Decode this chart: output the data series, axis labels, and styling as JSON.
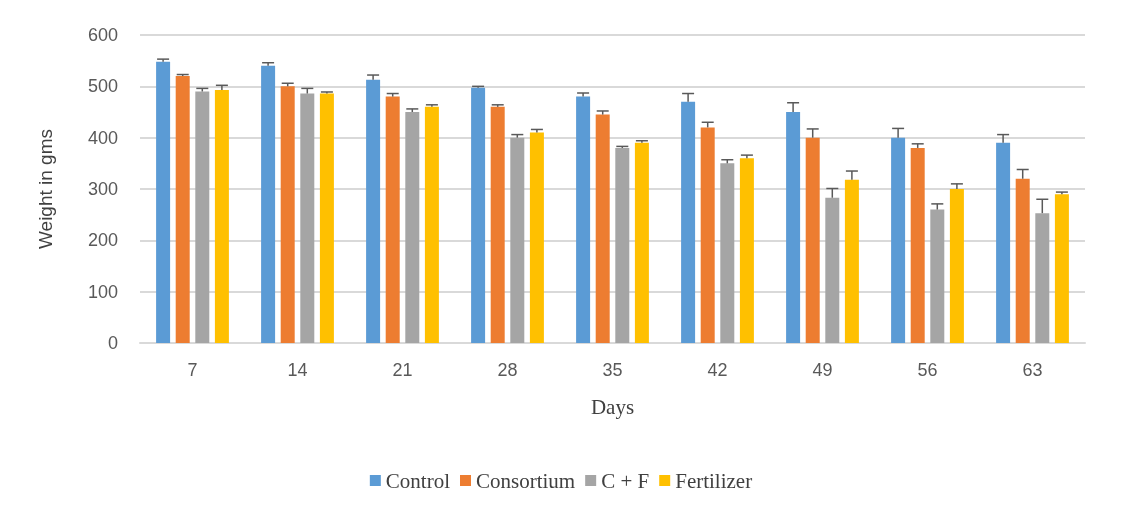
{
  "chart_data": {
    "type": "bar",
    "xlabel": "Days",
    "ylabel": "Weight in gms",
    "categories": [
      "7",
      "14",
      "21",
      "28",
      "35",
      "42",
      "49",
      "56",
      "63"
    ],
    "series": [
      {
        "name": "Control",
        "color": "#5b9bd5",
        "values": [
          548,
          540,
          513,
          497,
          480,
          470,
          450,
          400,
          390
        ],
        "errors": [
          [
            548,
            553
          ],
          [
            540,
            546
          ],
          [
            513,
            522
          ],
          [
            497,
            500
          ],
          [
            480,
            487
          ],
          [
            470,
            486
          ],
          [
            450,
            468
          ],
          [
            400,
            418
          ],
          [
            390,
            406
          ]
        ]
      },
      {
        "name": "Consortium",
        "color": "#ed7d31",
        "values": [
          520,
          500,
          480,
          460,
          445,
          420,
          400,
          380,
          320
        ],
        "errors": [
          [
            520,
            523
          ],
          [
            500,
            506
          ],
          [
            480,
            486
          ],
          [
            460,
            464
          ],
          [
            445,
            452
          ],
          [
            420,
            430
          ],
          [
            400,
            417
          ],
          [
            380,
            388
          ],
          [
            320,
            338
          ]
        ]
      },
      {
        "name": "C + F",
        "color": "#a5a5a5",
        "values": [
          490,
          486,
          450,
          400,
          380,
          350,
          283,
          260,
          253
        ],
        "errors": [
          [
            490,
            496
          ],
          [
            486,
            496
          ],
          [
            450,
            456
          ],
          [
            400,
            406
          ],
          [
            380,
            383
          ],
          [
            350,
            357
          ],
          [
            283,
            301
          ],
          [
            260,
            271
          ],
          [
            253,
            280
          ]
        ]
      },
      {
        "name": "Fertilizer",
        "color": "#ffc000",
        "values": [
          493,
          486,
          460,
          410,
          390,
          360,
          318,
          300,
          290
        ],
        "errors": [
          [
            493,
            502
          ],
          [
            486,
            489
          ],
          [
            460,
            464
          ],
          [
            410,
            416
          ],
          [
            390,
            394
          ],
          [
            360,
            366
          ],
          [
            318,
            335
          ],
          [
            300,
            310
          ],
          [
            290,
            294
          ]
        ]
      }
    ],
    "ylim": [
      0,
      600
    ],
    "yticks": [
      0,
      100,
      200,
      300,
      400,
      500,
      600
    ],
    "grid": "y",
    "legend": "bottom"
  }
}
